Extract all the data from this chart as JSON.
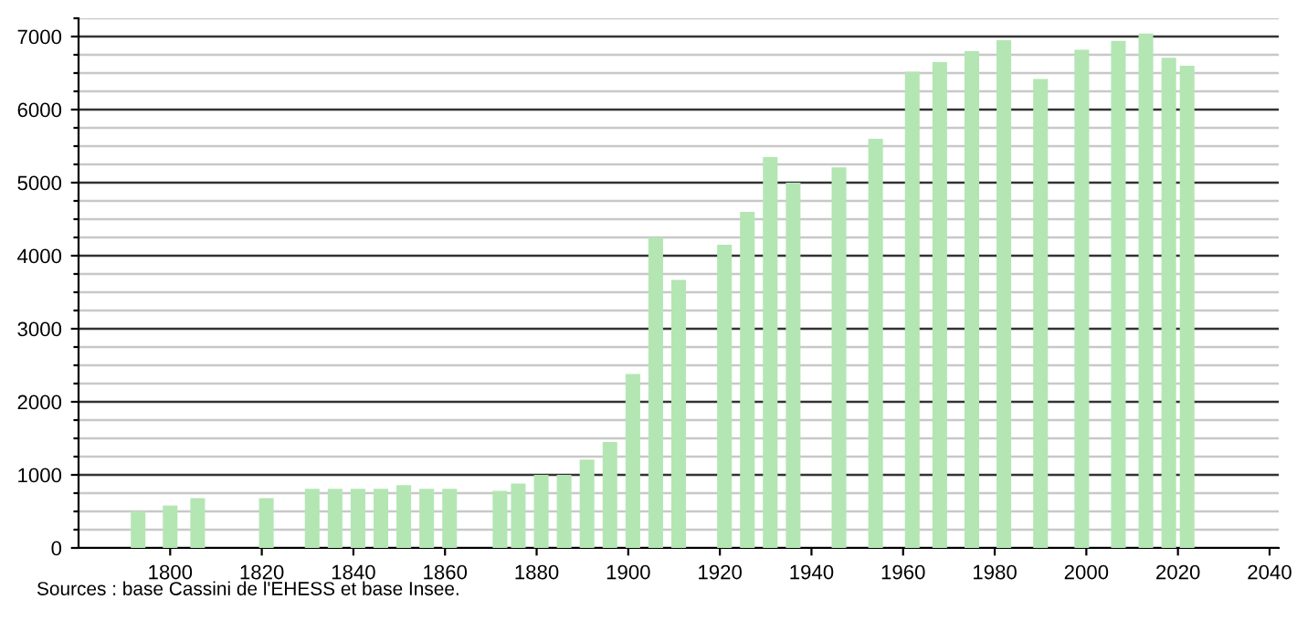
{
  "chart_data": {
    "type": "bar",
    "x": [
      1793,
      1800,
      1806,
      1821,
      1831,
      1836,
      1841,
      1846,
      1851,
      1856,
      1861,
      1872,
      1876,
      1881,
      1886,
      1891,
      1896,
      1901,
      1906,
      1911,
      1921,
      1926,
      1931,
      1936,
      1946,
      1954,
      1962,
      1968,
      1975,
      1982,
      1990,
      1999,
      2007,
      2013,
      2018,
      2022
    ],
    "values": [
      500,
      580,
      680,
      680,
      810,
      810,
      810,
      810,
      860,
      810,
      810,
      780,
      880,
      1000,
      1000,
      1210,
      1450,
      2380,
      4250,
      3670,
      4150,
      4600,
      5350,
      5000,
      5210,
      5600,
      6520,
      6650,
      6800,
      6950,
      6420,
      6820,
      6940,
      7040,
      6710,
      6600
    ],
    "color": "#b3e6b3",
    "xlim": [
      1780,
      2042
    ],
    "xticks": [
      1800,
      1820,
      1840,
      1860,
      1880,
      1900,
      1920,
      1940,
      1960,
      1980,
      2000,
      2020,
      2040
    ],
    "ylim": [
      0,
      7250
    ],
    "yticks": [
      0,
      {
        "value": 250,
        "label": null
      },
      {
        "value": 500,
        "label": null
      },
      {
        "value": 750,
        "label": null
      },
      1000,
      {
        "value": 1250,
        "label": null
      },
      {
        "value": 1500,
        "label": null
      },
      {
        "value": 1750,
        "label": null
      },
      2000,
      {
        "value": 2250,
        "label": null
      },
      {
        "value": 2500,
        "label": null
      },
      {
        "value": 2750,
        "label": null
      },
      3000,
      {
        "value": 3250,
        "label": null
      },
      {
        "value": 3500,
        "label": null
      },
      {
        "value": 3750,
        "label": null
      },
      4000,
      {
        "value": 4250,
        "label": null
      },
      {
        "value": 4500,
        "label": null
      },
      {
        "value": 4750,
        "label": null
      },
      5000,
      {
        "value": 5250,
        "label": null
      },
      {
        "value": 5500,
        "label": null
      },
      {
        "value": 5750,
        "label": null
      },
      6000,
      {
        "value": 6250,
        "label": null
      },
      {
        "value": 6500,
        "label": null
      },
      {
        "value": 6750,
        "label": null
      },
      7000,
      {
        "value": 7250,
        "label": null
      }
    ],
    "grid": "y",
    "annotations": [
      "Sources : base Cassini de l'EHESS et base Insee."
    ]
  }
}
